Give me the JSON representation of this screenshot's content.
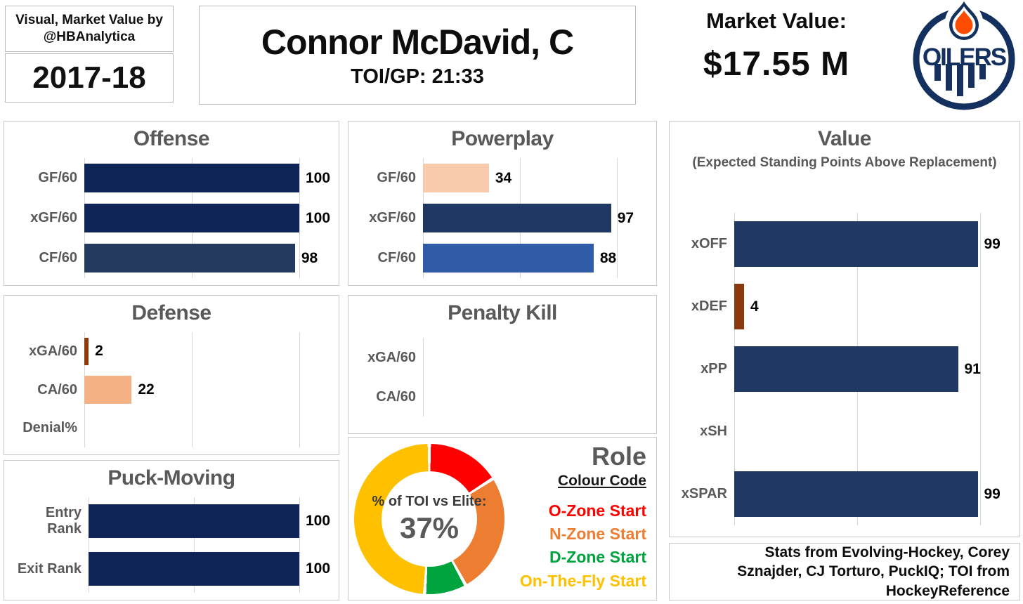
{
  "header": {
    "credit": "Visual, Market Value by @HBAnalytica",
    "season": "2017-18",
    "player": "Connor McDavid, C",
    "toi": "TOI/GP: 21:33",
    "market_value_label": "Market Value:",
    "market_value": "$17.55 M",
    "logo_text": "OILERS"
  },
  "footer": {
    "credits": "Stats from Evolving-Hockey, Corey Sznajder, CJ Torturo, PuckIQ; TOI from HockeyReference"
  },
  "colors": {
    "navy_dark": "#0f2557",
    "navy_mid": "#1f3864",
    "blue_mid": "#2f5ba7",
    "brown": "#8b3a0f",
    "peach": "#f4b183",
    "peach_light": "#f8cbad",
    "red": "#fe0000",
    "orange": "#ed7d31",
    "green": "#00a43e",
    "yellow": "#ffc000",
    "title_gray": "#595959",
    "oilers_navy": "#13305e",
    "oilers_orange": "#fc4c02"
  },
  "chart_data": [
    {
      "id": "offense",
      "type": "bar",
      "orientation": "horizontal",
      "title": "Offense",
      "categories": [
        "GF/60",
        "xGF/60",
        "CF/60"
      ],
      "values": [
        100,
        100,
        98
      ],
      "bar_colors": [
        "#0f2557",
        "#0f2557",
        "#243a5f"
      ],
      "xlim": [
        0,
        100
      ],
      "gridlines": [
        0,
        50,
        100
      ],
      "label_width": 104
    },
    {
      "id": "defense",
      "type": "bar",
      "orientation": "horizontal",
      "title": "Defense",
      "categories": [
        "xGA/60",
        "CA/60",
        "Denial%"
      ],
      "values": [
        2,
        22,
        null
      ],
      "bar_colors": [
        "#8b3a0f",
        "#f4b183",
        null
      ],
      "xlim": [
        0,
        100
      ],
      "gridlines": [
        0,
        50,
        100
      ],
      "label_width": 104
    },
    {
      "id": "puck_moving",
      "type": "bar",
      "orientation": "horizontal",
      "title": "Puck-Moving",
      "categories": [
        "Entry Rank",
        "Exit Rank"
      ],
      "values": [
        100,
        100
      ],
      "bar_colors": [
        "#0f2557",
        "#0f2557"
      ],
      "xlim": [
        0,
        100
      ],
      "gridlines": [
        0,
        50,
        100
      ],
      "label_width": 110
    },
    {
      "id": "powerplay",
      "type": "bar",
      "orientation": "horizontal",
      "title": "Powerplay",
      "categories": [
        "GF/60",
        "xGF/60",
        "CF/60"
      ],
      "values": [
        34,
        97,
        88
      ],
      "bar_colors": [
        "#f8cbad",
        "#1f3864",
        "#2f5ba7"
      ],
      "xlim": [
        0,
        100
      ],
      "gridlines": [
        0,
        50,
        100
      ],
      "label_width": 96
    },
    {
      "id": "penalty_kill",
      "type": "bar",
      "orientation": "horizontal",
      "title": "Penalty Kill",
      "categories": [
        "xGA/60",
        "CA/60"
      ],
      "values": [
        null,
        null
      ],
      "bar_colors": [
        null,
        null
      ],
      "xlim": [
        0,
        100
      ],
      "gridlines": [
        0
      ],
      "label_width": 96
    },
    {
      "id": "value",
      "type": "bar",
      "orientation": "horizontal",
      "title": "Value",
      "subtitle": "(Expected Standing Points Above Replacement)",
      "categories": [
        "xOFF",
        "xDEF",
        "xPP",
        "xSH",
        "xSPAR"
      ],
      "values": [
        99,
        4,
        91,
        null,
        99
      ],
      "bar_colors": [
        "#1f3864",
        "#8b3a0f",
        "#1f3864",
        null,
        "#1f3864"
      ],
      "xlim": [
        0,
        100
      ],
      "gridlines": [
        0,
        50,
        100
      ],
      "label_width": 82
    },
    {
      "id": "role",
      "type": "pie",
      "title": "Role",
      "subtitle": "Colour Code",
      "center_label": "% of TOI vs Elite:",
      "center_value": "37%",
      "slices": [
        {
          "label": "O-Zone Start",
          "color": "#fe0000",
          "pct": 16
        },
        {
          "label": "N-Zone Start",
          "color": "#ed7d31",
          "pct": 26
        },
        {
          "label": "D-Zone Start",
          "color": "#00a43e",
          "pct": 9
        },
        {
          "label": "On-The-Fly Start",
          "color": "#ffc000",
          "pct": 49
        }
      ]
    }
  ]
}
